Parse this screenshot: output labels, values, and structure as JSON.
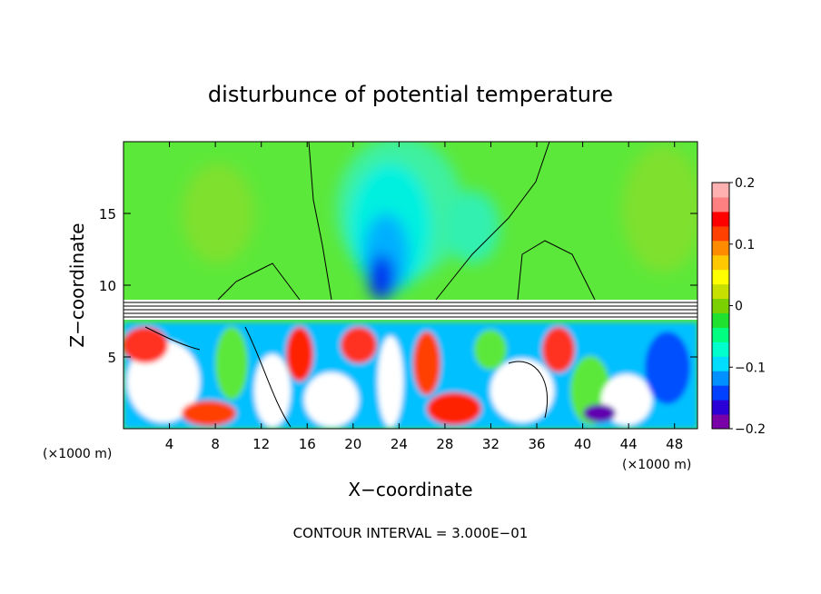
{
  "chart_data": {
    "type": "heatmap",
    "title": "disturbunce of potential temperature",
    "xlabel": "X−coordinate",
    "ylabel": "Z−coordinate",
    "x_unit_left": "(×1000 m)",
    "x_unit_right": "(×1000 m)",
    "xlim": [
      0,
      50
    ],
    "ylim": [
      0,
      20
    ],
    "x_ticks": [
      4,
      8,
      12,
      16,
      20,
      24,
      28,
      32,
      36,
      40,
      44,
      48
    ],
    "y_ticks": [
      5,
      10,
      15
    ],
    "colorbar": {
      "range": [
        -0.2,
        0.2
      ],
      "tick_values": [
        0.2,
        0.1,
        0,
        -0.1,
        -0.2
      ],
      "tick_labels": [
        "0.2",
        "0.1",
        "0",
        "−0.1",
        "−0.2"
      ],
      "colors": [
        "#7a00a8",
        "#2a00d6",
        "#0040ff",
        "#0090ff",
        "#00ddff",
        "#00ffcc",
        "#00ff80",
        "#20e030",
        "#7ad000",
        "#c8e000",
        "#ffff00",
        "#ffc800",
        "#ff8c00",
        "#ff4000",
        "#ff0000",
        "#ff8080",
        "#ffb0b0"
      ]
    },
    "footer": "CONTOUR INTERVAL = 3.000E−01"
  }
}
